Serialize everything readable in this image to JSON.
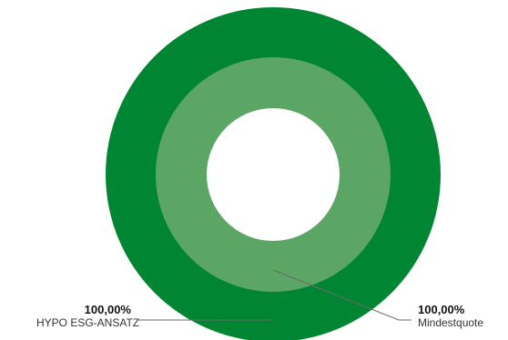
{
  "chart_data": {
    "type": "pie",
    "variant": "nested-donut",
    "rings": [
      {
        "name": "HYPO ESG-ANSATZ",
        "ring": "outer",
        "value": 100.0,
        "value_label": "100,00%",
        "color": "#008533"
      },
      {
        "name": "Mindestquote",
        "ring": "inner",
        "value": 100.0,
        "value_label": "100,00%",
        "color": "#5ba664"
      }
    ],
    "legend": "callout-labels-bottom",
    "background": "#ffffff"
  }
}
